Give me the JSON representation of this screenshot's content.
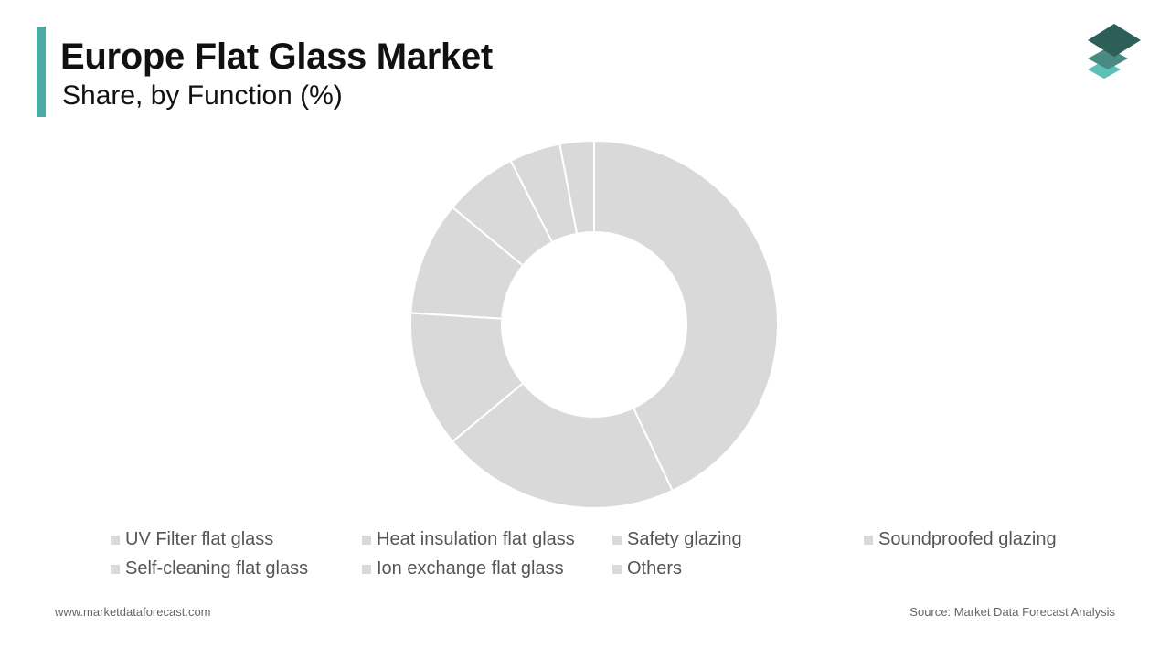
{
  "header": {
    "title": "Europe Flat Glass Market",
    "subtitle": "Share, by Function (%)"
  },
  "colors": {
    "accent": "#4aaba6",
    "slice": "#d9d9d9",
    "logo_dark": "#2e5e58",
    "logo_mid": "#4a8a84",
    "logo_light": "#5cc0b8"
  },
  "chart_data": {
    "type": "pie",
    "donut": true,
    "title": "Europe Flat Glass Market",
    "subtitle": "Share, by Function (%)",
    "categories": [
      "UV Filter flat glass",
      "Heat insulation flat glass",
      "Safety glazing",
      "Soundproofed glazing",
      "Self-cleaning flat glass",
      "Ion exchange flat glass",
      "Others"
    ],
    "values": [
      43,
      21,
      12,
      10,
      6.5,
      4.5,
      3
    ],
    "legend_position": "bottom"
  },
  "footer": {
    "website": "www.marketdataforecast.com",
    "source": "Source: Market Data Forecast Analysis"
  }
}
